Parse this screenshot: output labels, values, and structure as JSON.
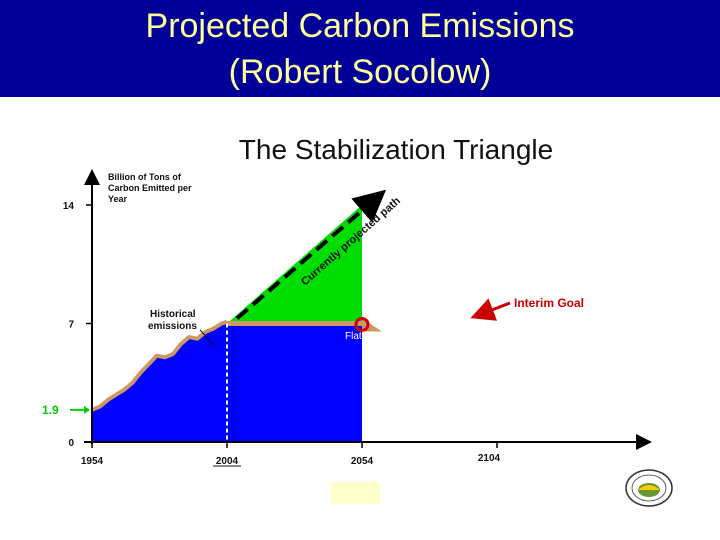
{
  "header": {
    "title_line1": "Projected Carbon Emissions",
    "title_line2": "(Robert Socolow)",
    "background_color": "#000099",
    "text_color": "#ffff99"
  },
  "chart_data": {
    "type": "area",
    "title": "The Stabilization Triangle",
    "ylabel_lines": [
      "Billion of Tons of",
      "Carbon Emitted per",
      "Year"
    ],
    "xlabel": "",
    "x_ticks": [
      1954,
      2004,
      2054,
      2104
    ],
    "y_ticks": [
      0,
      7,
      14
    ],
    "xlim": [
      1954,
      2104
    ],
    "ylim": [
      0,
      14
    ],
    "highlight_value": {
      "label": "1.9",
      "value": 1.9,
      "color": "#00cc00"
    },
    "historical": {
      "name": "Historical emissions",
      "x": [
        1954,
        1957,
        1960,
        1963,
        1966,
        1969,
        1972,
        1975,
        1978,
        1981,
        1984,
        1987,
        1990,
        1993,
        1996,
        1999,
        2002,
        2004
      ],
      "y": [
        1.9,
        2.1,
        2.5,
        2.8,
        3.1,
        3.5,
        4.1,
        4.6,
        5.1,
        5.0,
        5.2,
        5.8,
        6.2,
        6.1,
        6.5,
        6.7,
        7.0,
        7.1
      ],
      "color": "#0000ff",
      "outline_color": "#cc9966"
    },
    "projected": {
      "name": "Currently projected path",
      "x": [
        2004,
        2054
      ],
      "y": [
        7,
        14
      ],
      "style": "dashed-arrow"
    },
    "flat": {
      "name": "Flat path",
      "x": [
        2004,
        2054
      ],
      "y": [
        7,
        7
      ],
      "color": "#cc9966"
    },
    "stabilization_triangle": {
      "name": "Stabilization Triangle",
      "color": "#00dd00"
    },
    "annotation": {
      "label": "Interim Goal",
      "color": "#cc0000"
    },
    "grid": false
  }
}
